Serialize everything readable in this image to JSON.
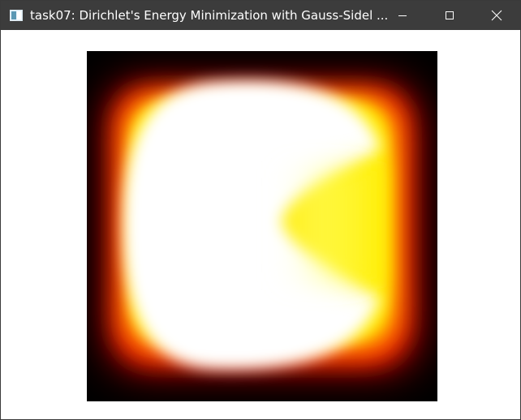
{
  "window": {
    "title": "task07: Dirichlet's Energy Minimization with Gauss-Sidel ...",
    "icon": "app-window-icon",
    "controls": {
      "minimize_icon": "minimize-icon",
      "maximize_icon": "maximize-icon",
      "close_icon": "close-icon"
    },
    "colors": {
      "titlebar": "#3c3c3c",
      "title_text": "#ffffff",
      "client_background": "#ffffff"
    }
  },
  "viewport": {
    "content": "heat-colormap-field",
    "colormap": [
      "#000000",
      "#8b0000",
      "#ff0000",
      "#ffa500",
      "#ffff00",
      "#ffffff"
    ]
  }
}
